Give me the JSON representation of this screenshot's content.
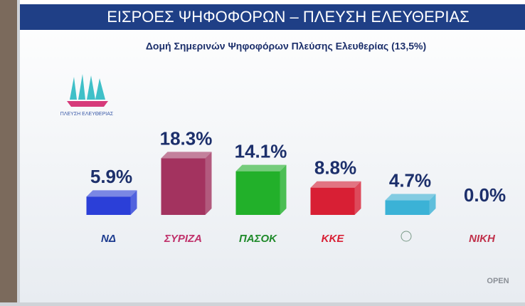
{
  "chart_data": {
    "type": "bar",
    "title": "ΕΙΣΡΟΕΣ ΨΗΦΟΦΟΡΩΝ – ΠΛΕΥΣΗ ΕΛΕΥΘΕΡΙΑΣ",
    "subtitle": "Δομή Σημερινών Ψηφοφόρων Πλεύσης Ελευθερίας (13,5%)",
    "logo_text": "ΠΛΕΥΣΗ ΕΛΕΥΘΕΡΙΑΣ",
    "watermark": "OPEN",
    "categories": [
      "ΝΔ",
      "ΣΥΡΙΖΑ",
      "ΠΑΣΟΚ",
      "ΚΚΕ",
      null,
      "ΝΙΚΗ"
    ],
    "values": [
      5.9,
      18.3,
      14.1,
      8.8,
      4.7,
      0.0
    ],
    "value_labels": [
      "5.9%",
      "18.3%",
      "14.1%",
      "8.8%",
      "4.7%",
      "0.0%"
    ],
    "colors": [
      "#2b3fd8",
      "#a3335f",
      "#22b02a",
      "#d81f34",
      "#3bb2d6",
      "#999999"
    ],
    "label_colors": [
      "#1c3b8f",
      "#c0306a",
      "#1f8a2a",
      "#d81f34",
      "#6a8f7a",
      "#c0304a"
    ]
  }
}
